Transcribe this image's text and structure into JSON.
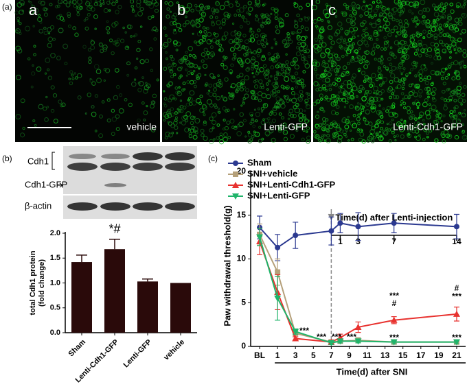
{
  "figure": {
    "panel_labels": [
      "(a)",
      "(b)",
      "(c)"
    ],
    "images": [
      {
        "letter": "a",
        "caption": "vehicle"
      },
      {
        "letter": "b",
        "caption": "Lenti-GFP"
      },
      {
        "letter": "c",
        "caption": "Lenti-Cdh1-GFP"
      }
    ]
  },
  "blot": {
    "labels": [
      "Cdh1",
      "Cdh1-GFP",
      "β-actin"
    ]
  },
  "chart_data": [
    {
      "type": "bar",
      "categories": [
        "Sham",
        "Lenti-Cdh1-GFP",
        "Lenti-GFP",
        "vehicle"
      ],
      "values": [
        1.42,
        1.68,
        1.03,
        1.0
      ],
      "errors": [
        0.14,
        0.2,
        0.05,
        0
      ],
      "color": "#2a0a0a",
      "ylim": [
        0,
        2.0
      ],
      "yticks": [
        {
          "value": 0,
          "label": "0.0"
        },
        {
          "value": 0.5,
          "label": "0.5"
        },
        {
          "value": 1.0,
          "label": "1.0"
        },
        {
          "value": 1.5,
          "label": "1.5"
        },
        {
          "value": 2.0,
          "label": "2.0"
        }
      ],
      "ylabel": [
        "total Cdh1 protein",
        "(fold change)"
      ],
      "annotations": [
        "*#"
      ]
    },
    {
      "type": "line",
      "x": [
        -1,
        1,
        3,
        7,
        8,
        10,
        14,
        21
      ],
      "xlim": [
        -2,
        22
      ],
      "xticks": [
        {
          "value": -1,
          "label": "BL"
        },
        1,
        3,
        5,
        7,
        9,
        11,
        13,
        15,
        17,
        19,
        21
      ],
      "ylim": [
        0,
        20
      ],
      "yticks": [
        0,
        5,
        10,
        15,
        20
      ],
      "xlabel": "Time(d) after SNI",
      "ylabel": "Paw withdrawal threshold(g)",
      "legend": "upper left",
      "series": [
        {
          "name": "Sham",
          "color": "#2b3990",
          "marker": "circle",
          "values": [
            13.6,
            11.3,
            12.7,
            13.2,
            14.1,
            13.7,
            14.1,
            13.7
          ],
          "errors": [
            1.3,
            1.5,
            1.5,
            1.6,
            1.1,
            1.6,
            1.1,
            1.4
          ]
        },
        {
          "name": "SNI+vehicle",
          "color": "#b5a07a",
          "marker": "square",
          "values": [
            12.8,
            8.5,
            1.5,
            0.5,
            0.6,
            0.7,
            0.5,
            0.5
          ],
          "errors": [
            1.2,
            1.5,
            0.4,
            0.2,
            0.2,
            0.3,
            0.2,
            0.2
          ]
        },
        {
          "name": "SNI+Lenti-Cdh1-GFP",
          "color": "#e8322f",
          "marker": "triangle-up",
          "values": [
            12.0,
            6.2,
            0.9,
            0.5,
            1.0,
            2.2,
            3.0,
            3.7
          ],
          "errors": [
            1.5,
            2.0,
            0.2,
            0.2,
            0.4,
            0.6,
            0.4,
            0.8
          ]
        },
        {
          "name": "SNI+Lenti-GFP",
          "color": "#1fb46a",
          "marker": "triangle-down",
          "values": [
            12.5,
            5.5,
            1.7,
            0.4,
            0.6,
            0.6,
            0.5,
            0.5
          ],
          "errors": [
            1.0,
            2.5,
            0.3,
            0.2,
            0.2,
            0.2,
            0.2,
            0.2
          ]
        }
      ],
      "vline": 7,
      "secondary_label": "Time(d) after Lenti-injection",
      "secondary_ticks": [
        {
          "value": 8,
          "label": "1"
        },
        {
          "value": 10,
          "label": "3"
        },
        {
          "value": 14,
          "label": "7"
        },
        {
          "value": 21,
          "label": "14"
        }
      ],
      "annotations": [
        "***",
        "***",
        "***",
        "***",
        "***",
        "#",
        "***",
        "#",
        "***",
        "***"
      ]
    }
  ]
}
